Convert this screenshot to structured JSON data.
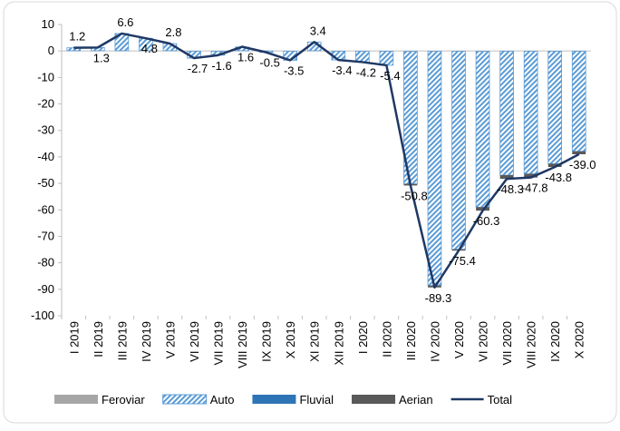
{
  "chart_data": {
    "type": "bar",
    "stacked": true,
    "categories": [
      "I 2019",
      "II 2019",
      "III 2019",
      "IV 2019",
      "V 2019",
      "VI 2019",
      "VII 2019",
      "VIII 2019",
      "IX 2019",
      "X 2019",
      "XI 2019",
      "XII 2019",
      "I 2020",
      "II 2020",
      "III 2020",
      "IV 2020",
      "V 2020",
      "VI 2020",
      "VII 2020",
      "VIII 2020",
      "IX 2020",
      "X 2020"
    ],
    "series": [
      {
        "name": "Feroviar",
        "color": "#a6a6a6",
        "values": [
          0.1,
          0.1,
          0.1,
          0.1,
          0.1,
          -0.1,
          -0.1,
          0.1,
          0,
          -0.1,
          0.1,
          -0.1,
          -0.1,
          -0.1,
          -0.2,
          -0.1,
          -0.1,
          -0.2,
          -0.1,
          -0.1,
          -0.1,
          -0.1
        ]
      },
      {
        "name": "Auto",
        "color": "#5b9bd5",
        "pattern": "diagonal",
        "values": [
          1.1,
          1.2,
          6.5,
          4.7,
          2.7,
          -2.6,
          -1.5,
          1.3,
          -0.5,
          -3.4,
          3.3,
          -3.3,
          -4.1,
          -5.3,
          -50.0,
          -88.5,
          -74.8,
          -58.8,
          -46.8,
          -46.3,
          -42.5,
          -37.8
        ]
      },
      {
        "name": "Fluvial",
        "color": "#2e75b6",
        "values": [
          0,
          0,
          0,
          0,
          0,
          0,
          0,
          0.2,
          0,
          0,
          0,
          0,
          0,
          0,
          0,
          0,
          0,
          0,
          0,
          0,
          0,
          0
        ]
      },
      {
        "name": "Aerian",
        "color": "#595959",
        "values": [
          0,
          0,
          0,
          0,
          0,
          0,
          0,
          0,
          0,
          0,
          0,
          0,
          0,
          0,
          -0.6,
          -0.7,
          -0.5,
          -1.3,
          -1.4,
          -1.4,
          -1.2,
          -1.1
        ]
      },
      {
        "name": "Total",
        "type": "line",
        "color": "#1f3864",
        "values": [
          1.2,
          1.3,
          6.6,
          4.8,
          2.8,
          -2.7,
          -1.6,
          1.6,
          -0.5,
          -3.5,
          3.4,
          -3.4,
          -4.2,
          -5.4,
          -50.8,
          -89.3,
          -75.4,
          -60.3,
          -48.3,
          -47.8,
          -43.8,
          -39.0
        ],
        "value_labels": [
          "1.2",
          "1.3",
          "6.6",
          "4.8",
          "2.8",
          "-2.7",
          "-1.6",
          "1.6",
          "-0.5",
          "-3.5",
          "3.4",
          "-3.4",
          "-4.2",
          "-5.4",
          "-50.8",
          "-89.3",
          "-75.4",
          "-60.3",
          "-48.3",
          "-47.8",
          "-43.8",
          "-39.0"
        ]
      }
    ],
    "ylim": [
      -100,
      10
    ],
    "yticks": [
      10,
      0,
      -10,
      -20,
      -30,
      -40,
      -50,
      -60,
      -70,
      -80,
      -90,
      -100
    ],
    "grid": false,
    "legend": "bottom"
  }
}
